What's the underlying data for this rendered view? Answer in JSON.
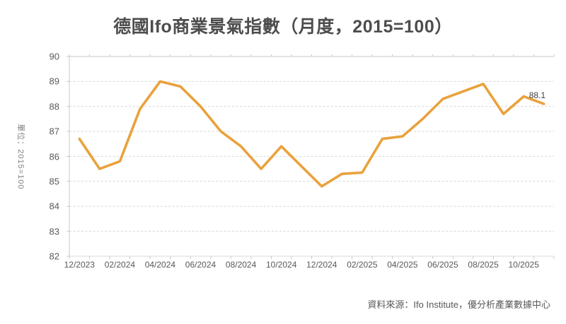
{
  "title": "德國Ifo商業景氣指數（月度，2015=100）",
  "unit_label": "單位：2015=100",
  "source": "資料來源：Ifo Institute，優分析產業數據中心",
  "end_label": "88.1",
  "colors": {
    "line": "#E9A23C",
    "grid": "#D9D9D9",
    "axis": "#C9C9C9",
    "tick": "#C9C9C9",
    "axis_text": "#595959",
    "title_text": "#4d4d4d",
    "unit_text": "#7f7f7f",
    "end_label_text": "#3f3f3f"
  },
  "chart_data": {
    "type": "line",
    "title": "德國Ifo商業景氣指數（月度，2015=100）",
    "ylabel": "單位：2015=100",
    "ylim": [
      82,
      90
    ],
    "y_ticks": [
      90,
      89,
      88,
      87,
      86,
      85,
      84,
      83,
      82
    ],
    "grid": "horizontal-dashed",
    "legend_position": "none",
    "x": [
      "12/2023",
      "01/2024",
      "02/2024",
      "03/2024",
      "04/2024",
      "05/2024",
      "06/2024",
      "07/2024",
      "08/2024",
      "09/2024",
      "10/2024",
      "11/2024",
      "12/2024",
      "01/2025",
      "02/2025",
      "03/2025",
      "04/2025",
      "05/2025",
      "06/2025",
      "07/2025",
      "08/2025",
      "09/2025",
      "10/2025",
      "11/2025"
    ],
    "x_tick_labels": [
      "12/2023",
      "02/2024",
      "04/2024",
      "06/2024",
      "08/2024",
      "10/2024",
      "12/2024",
      "02/2025",
      "04/2025",
      "06/2025",
      "08/2025",
      "10/2025"
    ],
    "series": [
      {
        "name": "Ifo Business Climate Index",
        "values": [
          86.7,
          85.5,
          85.8,
          87.9,
          89.0,
          88.8,
          88.0,
          87.0,
          86.4,
          85.5,
          86.4,
          85.6,
          84.8,
          85.3,
          85.35,
          86.7,
          86.8,
          87.5,
          88.3,
          88.6,
          88.9,
          87.7,
          88.4,
          88.1
        ]
      }
    ],
    "last_point_label": "88.1"
  }
}
